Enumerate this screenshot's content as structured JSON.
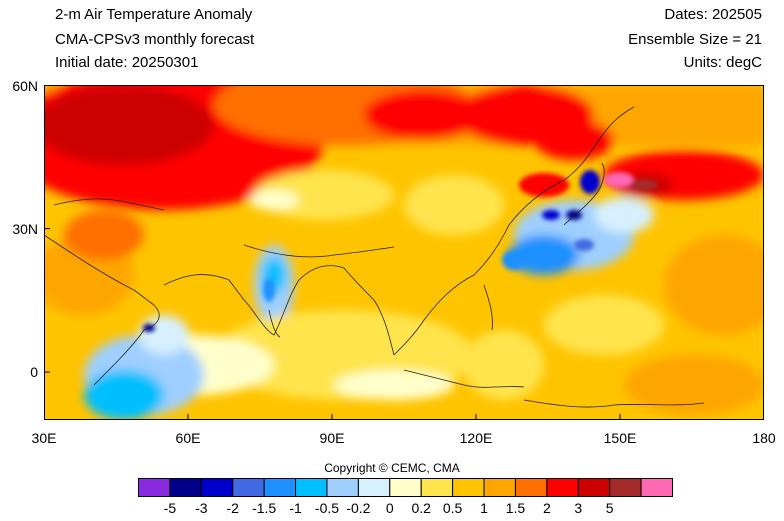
{
  "header": {
    "title": "2-m Air Temperature Anomaly",
    "model": "CMA-CPSv3 monthly forecast",
    "init": "Initial date: 20250301",
    "dates": "Dates: 202505",
    "ensemble": "Ensemble Size = 21",
    "units": "Units: degC"
  },
  "map": {
    "lon_range": [
      30,
      180
    ],
    "lat_range": [
      -10,
      60
    ],
    "lat_ticks": [
      "60N",
      "30N",
      "0"
    ],
    "lon_ticks": [
      "30E",
      "60E",
      "90E",
      "120E",
      "150E",
      "180"
    ]
  },
  "copyright": "Copyright © CEMC, CMA",
  "colorbar": {
    "colors": [
      "#8a2be2",
      "#00008b",
      "#0000cd",
      "#4169e1",
      "#1e90ff",
      "#00bfff",
      "#9ecfff",
      "#d6f0ff",
      "#ffffcc",
      "#ffe44d",
      "#ffc400",
      "#ffa500",
      "#ff7000",
      "#ff0000",
      "#cd0000",
      "#a52a2a",
      "#ff69b4"
    ],
    "labels": [
      "-5",
      "-3",
      "-2",
      "-1.5",
      "-1",
      "-0.5",
      "-0.2",
      "0",
      "0.2",
      "0.5",
      "1",
      "1.5",
      "2",
      "3",
      "5"
    ]
  }
}
